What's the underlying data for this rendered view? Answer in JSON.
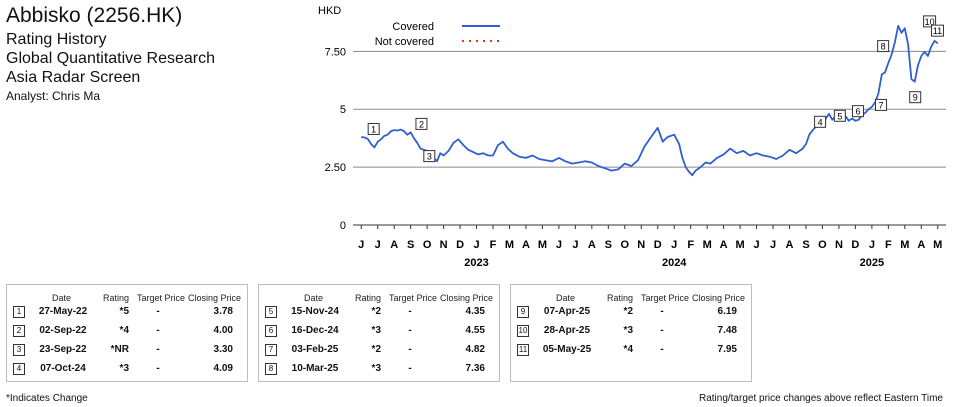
{
  "header": {
    "title": "Abbisko (2256.HK)",
    "subtitle_lines": [
      "Rating History",
      "Global Quantitative Research",
      "Asia Radar Screen"
    ],
    "analyst": "Analyst: Chris Ma"
  },
  "chart_data": {
    "type": "line",
    "ylabel": "HKD",
    "ylim": [
      0,
      9.2
    ],
    "yticks": [
      0,
      2.5,
      5,
      7.5
    ],
    "ytick_labels": [
      "0",
      "2.50",
      "5",
      "7.50"
    ],
    "month_labels": [
      "J",
      "J",
      "A",
      "S",
      "O",
      "N",
      "D",
      "J",
      "F",
      "M",
      "A",
      "M",
      "J",
      "J",
      "A",
      "S",
      "O",
      "N",
      "D",
      "J",
      "F",
      "M",
      "A",
      "M",
      "J",
      "J",
      "A",
      "S",
      "O",
      "N",
      "D",
      "J",
      "F",
      "M",
      "A",
      "M"
    ],
    "year_labels": [
      {
        "label": "2023",
        "month_index": 7
      },
      {
        "label": "2024",
        "month_index": 19
      },
      {
        "label": "2025",
        "month_index": 31
      }
    ],
    "legend": {
      "position": "top-left",
      "entries": [
        {
          "label": "Covered",
          "style": "solid",
          "color": "#2f5fd0"
        },
        {
          "label": "Not covered",
          "style": "dotted",
          "color": "#e8332a"
        }
      ]
    },
    "series": [
      {
        "style": "covered",
        "color": "#2f5fd0",
        "points": [
          [
            0,
            3.8
          ],
          [
            0.2,
            3.78
          ],
          [
            0.4,
            3.72
          ],
          [
            0.6,
            3.5
          ],
          [
            0.8,
            3.35
          ],
          [
            1.0,
            3.6
          ],
          [
            1.2,
            3.7
          ],
          [
            1.4,
            3.85
          ],
          [
            1.6,
            3.9
          ],
          [
            1.8,
            4.05
          ],
          [
            2.0,
            4.1
          ],
          [
            2.2,
            4.08
          ],
          [
            2.4,
            4.12
          ],
          [
            2.6,
            4.05
          ],
          [
            2.8,
            3.9
          ],
          [
            3.0,
            4.0
          ],
          [
            3.2,
            3.75
          ],
          [
            3.4,
            3.55
          ],
          [
            3.6,
            3.3
          ],
          [
            3.8,
            3.25
          ],
          [
            4.0,
            3.2
          ],
          [
            4.2,
            3.1
          ],
          [
            4.4,
            2.9
          ],
          [
            4.6,
            2.75
          ],
          [
            4.8,
            3.1
          ],
          [
            5.0,
            3.0
          ],
          [
            5.3,
            3.2
          ],
          [
            5.6,
            3.55
          ],
          [
            5.9,
            3.7
          ],
          [
            6.2,
            3.45
          ],
          [
            6.5,
            3.25
          ],
          [
            6.8,
            3.15
          ],
          [
            7.1,
            3.05
          ],
          [
            7.4,
            3.1
          ],
          [
            7.7,
            3.0
          ],
          [
            8.0,
            3.0
          ],
          [
            8.3,
            3.45
          ],
          [
            8.6,
            3.6
          ],
          [
            8.9,
            3.3
          ],
          [
            9.2,
            3.1
          ],
          [
            9.6,
            2.95
          ],
          [
            10.0,
            2.9
          ],
          [
            10.4,
            3.0
          ],
          [
            10.8,
            2.85
          ],
          [
            11.2,
            2.8
          ],
          [
            11.6,
            2.75
          ],
          [
            12.0,
            2.9
          ],
          [
            12.4,
            2.75
          ],
          [
            12.8,
            2.65
          ],
          [
            13.2,
            2.7
          ],
          [
            13.6,
            2.75
          ],
          [
            14.0,
            2.7
          ],
          [
            14.4,
            2.55
          ],
          [
            14.8,
            2.45
          ],
          [
            15.2,
            2.35
          ],
          [
            15.6,
            2.4
          ],
          [
            16.0,
            2.65
          ],
          [
            16.4,
            2.55
          ],
          [
            16.8,
            2.8
          ],
          [
            17.2,
            3.4
          ],
          [
            17.6,
            3.8
          ],
          [
            17.8,
            4.0
          ],
          [
            18.0,
            4.2
          ],
          [
            18.3,
            3.6
          ],
          [
            18.6,
            3.8
          ],
          [
            19.0,
            3.9
          ],
          [
            19.3,
            3.5
          ],
          [
            19.5,
            2.9
          ],
          [
            19.7,
            2.5
          ],
          [
            19.9,
            2.3
          ],
          [
            20.1,
            2.15
          ],
          [
            20.3,
            2.35
          ],
          [
            20.6,
            2.5
          ],
          [
            20.9,
            2.7
          ],
          [
            21.2,
            2.65
          ],
          [
            21.6,
            2.9
          ],
          [
            22.0,
            3.05
          ],
          [
            22.4,
            3.3
          ],
          [
            22.8,
            3.1
          ],
          [
            23.2,
            3.2
          ],
          [
            23.6,
            3.0
          ],
          [
            24.0,
            3.1
          ],
          [
            24.4,
            3.0
          ],
          [
            24.8,
            2.95
          ],
          [
            25.2,
            2.85
          ],
          [
            25.6,
            3.0
          ],
          [
            26.0,
            3.25
          ],
          [
            26.4,
            3.1
          ],
          [
            26.8,
            3.3
          ],
          [
            27.0,
            3.5
          ],
          [
            27.2,
            3.9
          ],
          [
            27.4,
            4.09
          ],
          [
            27.6,
            4.25
          ],
          [
            27.8,
            4.55
          ],
          [
            28.0,
            4.35
          ],
          [
            28.2,
            4.6
          ],
          [
            28.4,
            4.8
          ],
          [
            28.6,
            4.55
          ],
          [
            28.8,
            4.7
          ],
          [
            29.0,
            4.9
          ],
          [
            29.2,
            4.6
          ],
          [
            29.4,
            4.7
          ],
          [
            29.6,
            4.5
          ],
          [
            29.8,
            4.6
          ],
          [
            30.0,
            4.5
          ],
          [
            30.2,
            4.55
          ],
          [
            30.4,
            4.75
          ],
          [
            30.6,
            4.85
          ],
          [
            30.8,
            5.0
          ],
          [
            31.0,
            5.1
          ],
          [
            31.2,
            5.3
          ],
          [
            31.4,
            5.7
          ],
          [
            31.6,
            6.5
          ],
          [
            31.8,
            6.6
          ],
          [
            32.0,
            7.0
          ],
          [
            32.2,
            7.36
          ],
          [
            32.4,
            7.9
          ],
          [
            32.6,
            8.6
          ],
          [
            32.8,
            8.3
          ],
          [
            33.0,
            8.5
          ],
          [
            33.2,
            7.8
          ],
          [
            33.4,
            6.3
          ],
          [
            33.6,
            6.19
          ],
          [
            33.8,
            6.9
          ],
          [
            34.0,
            7.3
          ],
          [
            34.2,
            7.48
          ],
          [
            34.4,
            7.3
          ],
          [
            34.6,
            7.7
          ],
          [
            34.8,
            7.95
          ],
          [
            35.0,
            7.85
          ]
        ]
      }
    ],
    "rating_markers": [
      {
        "label": "1",
        "x": 0.3,
        "y": 3.78
      },
      {
        "label": "2",
        "x": 3.2,
        "y": 4.0
      },
      {
        "label": "3",
        "x": 3.8,
        "y": 3.3
      },
      {
        "label": "4",
        "x": 27.4,
        "y": 4.09
      },
      {
        "label": "5",
        "x": 28.6,
        "y": 4.35
      },
      {
        "label": "6",
        "x": 29.7,
        "y": 4.55
      },
      {
        "label": "7",
        "x": 31.1,
        "y": 4.82
      },
      {
        "label": "8",
        "x": 32.2,
        "y": 7.36
      },
      {
        "label": "9",
        "x": 33.6,
        "y": 6.19
      },
      {
        "label": "10",
        "x": 34.2,
        "y": 7.48
      },
      {
        "label": "11",
        "x": 34.8,
        "y": 7.95
      }
    ]
  },
  "table_headers": {
    "date": "Date",
    "rating": "Rating",
    "target": "Target Price",
    "closing": "Closing Price"
  },
  "tables": [
    [
      {
        "n": "1",
        "date": "27-May-22",
        "rating": "*5",
        "target": "-",
        "close": "3.78"
      },
      {
        "n": "2",
        "date": "02-Sep-22",
        "rating": "*4",
        "target": "-",
        "close": "4.00"
      },
      {
        "n": "3",
        "date": "23-Sep-22",
        "rating": "*NR",
        "target": "-",
        "close": "3.30"
      },
      {
        "n": "4",
        "date": "07-Oct-24",
        "rating": "*3",
        "target": "-",
        "close": "4.09"
      }
    ],
    [
      {
        "n": "5",
        "date": "15-Nov-24",
        "rating": "*2",
        "target": "-",
        "close": "4.35"
      },
      {
        "n": "6",
        "date": "16-Dec-24",
        "rating": "*3",
        "target": "-",
        "close": "4.55"
      },
      {
        "n": "7",
        "date": "03-Feb-25",
        "rating": "*2",
        "target": "-",
        "close": "4.82"
      },
      {
        "n": "8",
        "date": "10-Mar-25",
        "rating": "*3",
        "target": "-",
        "close": "7.36"
      }
    ],
    [
      {
        "n": "9",
        "date": "07-Apr-25",
        "rating": "*2",
        "target": "-",
        "close": "6.19"
      },
      {
        "n": "10",
        "date": "28-Apr-25",
        "rating": "*3",
        "target": "-",
        "close": "7.48"
      },
      {
        "n": "11",
        "date": "05-May-25",
        "rating": "*4",
        "target": "-",
        "close": "7.95"
      }
    ]
  ],
  "footer": {
    "left": "*Indicates Change",
    "right": "Rating/target price changes above reflect Eastern Time"
  }
}
